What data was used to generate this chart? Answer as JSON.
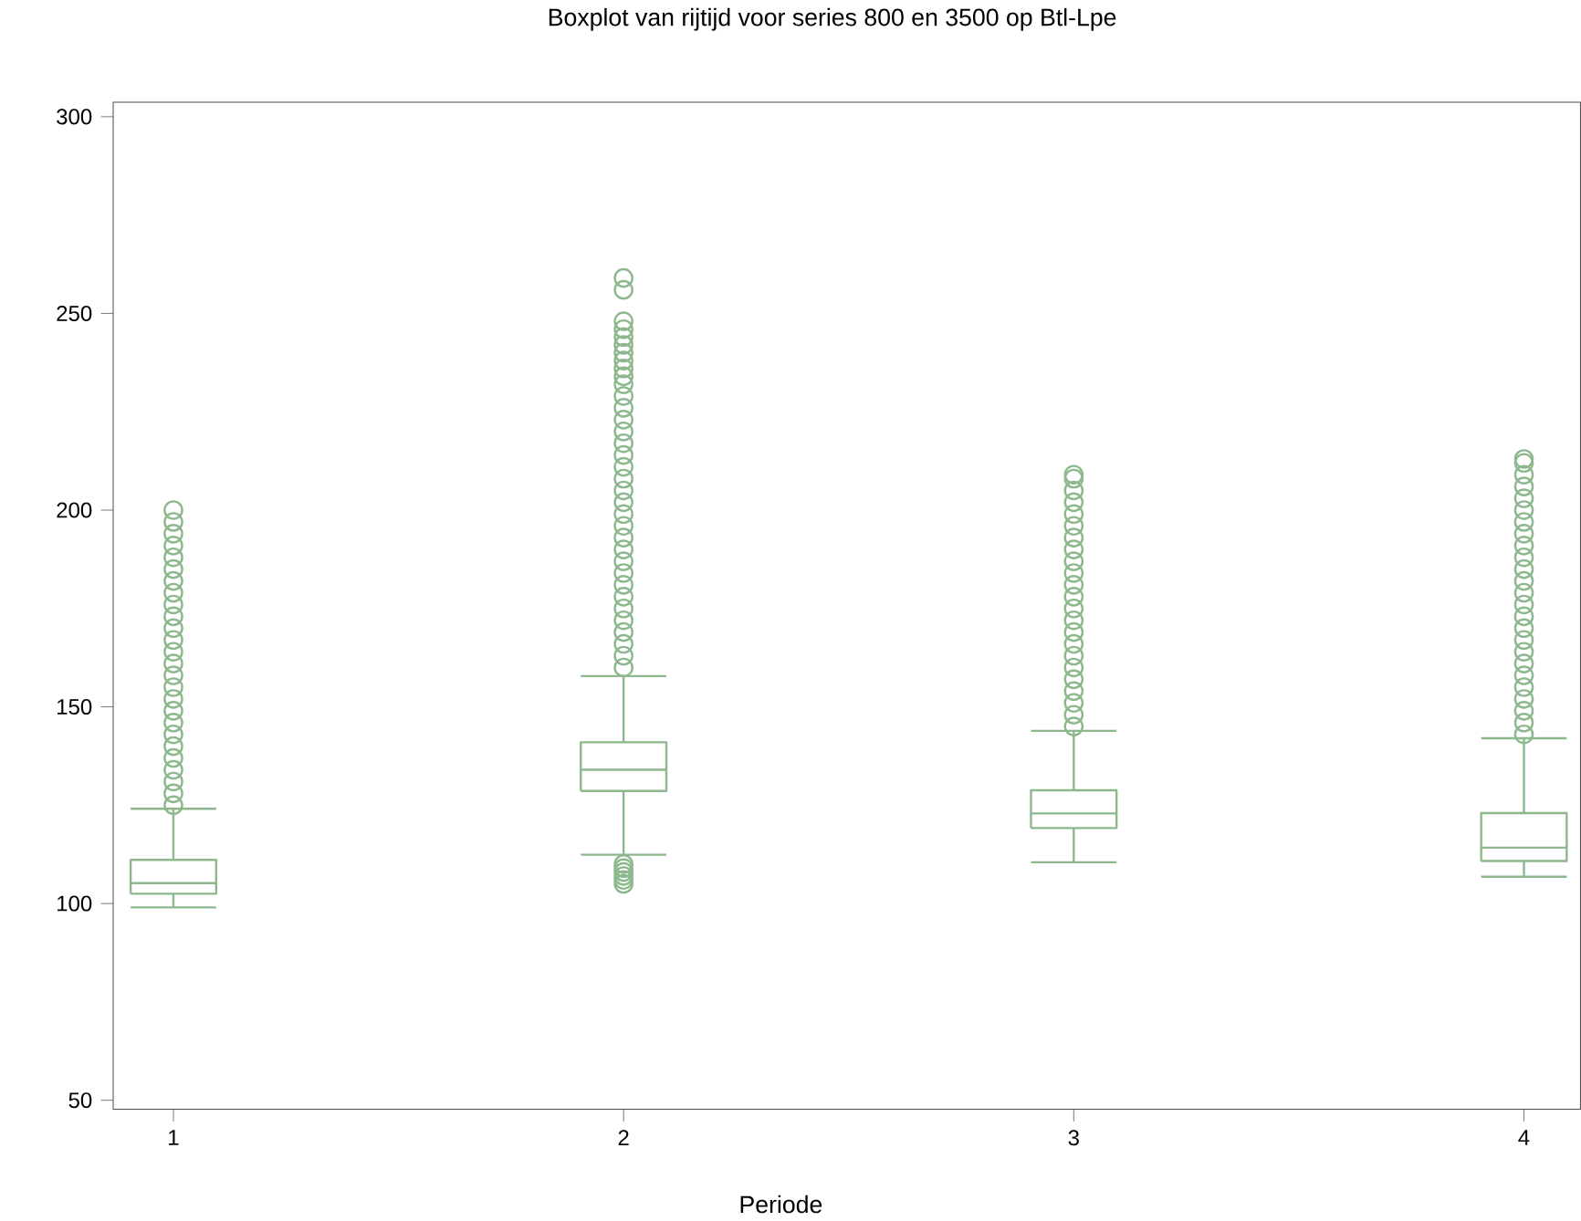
{
  "chart_data": {
    "type": "box",
    "title": "Boxplot van rijtijd voor series 800 en 3500 op Btl-Lpe",
    "xlabel": "Periode",
    "categories": [
      "1",
      "2",
      "3",
      "4"
    ],
    "color": "#8db88d",
    "marker": "circle",
    "ylim": [
      47.7,
      303.7
    ],
    "yticks": [
      50,
      100,
      150,
      200,
      250,
      300
    ],
    "boxes": [
      {
        "low": 99,
        "q1": 102.5,
        "median": 105.2,
        "q3": 111.1,
        "high": 124.1,
        "outliers": [
          125,
          128,
          131,
          134,
          137,
          140,
          143,
          146,
          149,
          152,
          155,
          158,
          161,
          164,
          167,
          170,
          173,
          176,
          179,
          182,
          185,
          188,
          191,
          194,
          197,
          200
        ]
      },
      {
        "low": 112.4,
        "q1": 128.6,
        "median": 134,
        "q3": 141,
        "high": 157.8,
        "outliers": [
          105,
          106,
          107,
          108,
          109,
          110,
          160,
          163,
          166,
          169,
          172,
          175,
          178,
          181,
          184,
          187,
          190,
          193,
          196,
          199,
          202,
          205,
          208,
          211,
          214,
          217,
          220,
          223,
          226,
          229,
          232,
          234,
          236,
          238,
          240,
          242,
          244,
          246,
          248,
          256,
          259
        ]
      },
      {
        "low": 110.5,
        "q1": 119.2,
        "median": 122.9,
        "q3": 128.8,
        "high": 143.9,
        "outliers": [
          145,
          148,
          151,
          154,
          157,
          160,
          163,
          166,
          169,
          172,
          175,
          178,
          181,
          184,
          187,
          190,
          193,
          196,
          199,
          202,
          205,
          208,
          209
        ]
      },
      {
        "low": 106.8,
        "q1": 110.8,
        "median": 114.2,
        "q3": 123,
        "high": 142,
        "outliers": [
          143,
          146,
          149,
          152,
          155,
          158,
          161,
          164,
          167,
          170,
          173,
          176,
          179,
          182,
          185,
          188,
          191,
          194,
          197,
          200,
          203,
          206,
          209,
          212,
          213
        ]
      }
    ]
  }
}
